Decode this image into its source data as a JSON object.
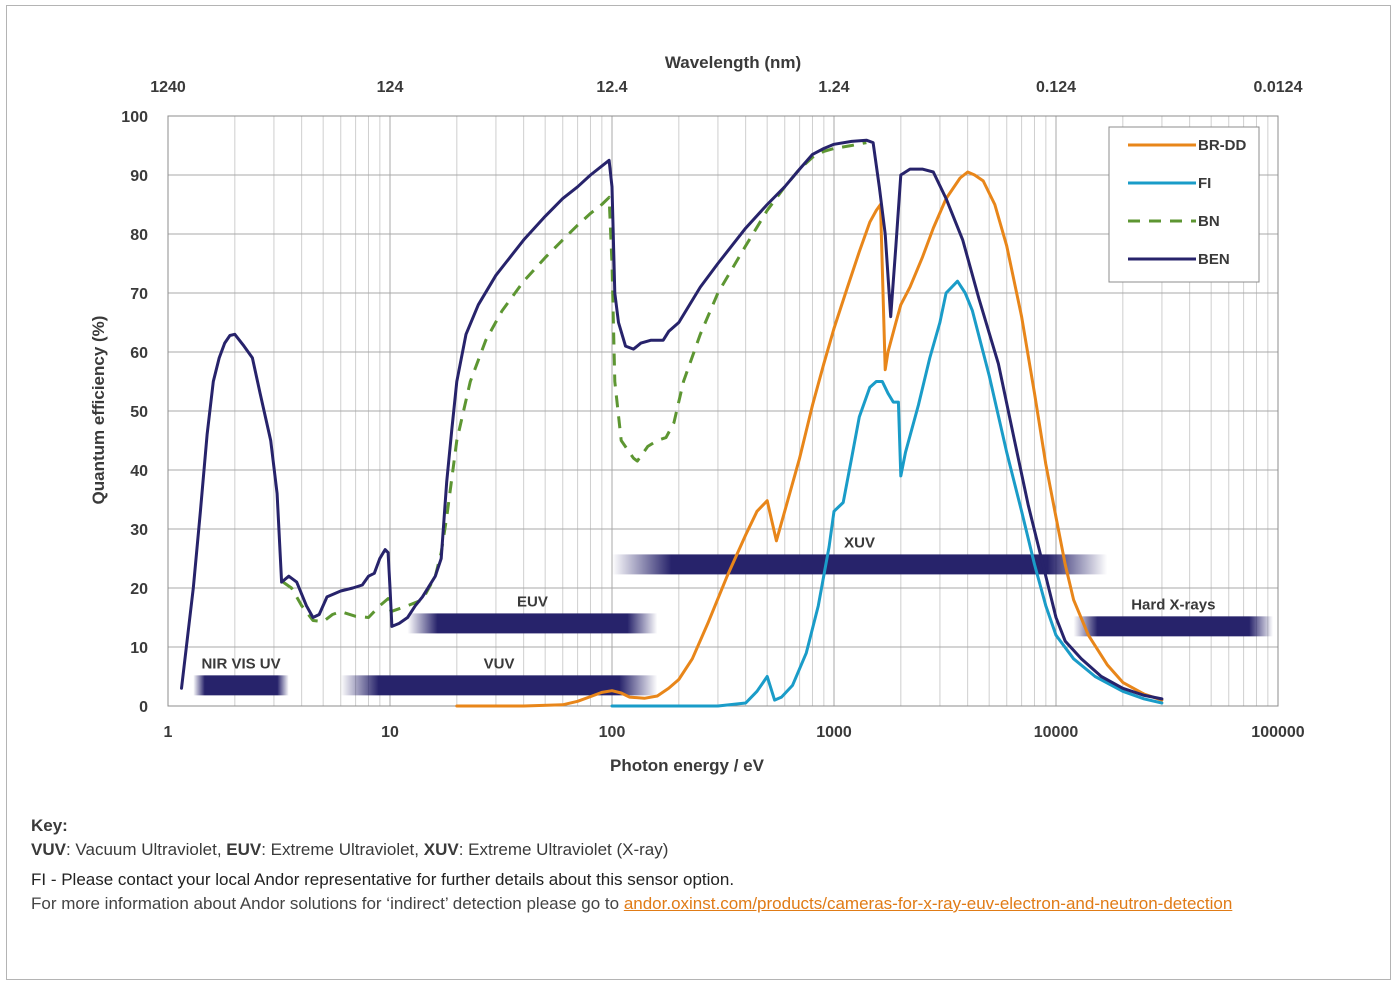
{
  "colors": {
    "br_dd": "#e8861a",
    "fi": "#1a9cc8",
    "bn": "#5d9632",
    "ben": "#27236b",
    "band": "#27236b",
    "link": "#e07b16"
  },
  "chart_data": {
    "type": "line",
    "title": "",
    "top_axis_title": "Wavelength (nm)",
    "top_tick_labels": [
      "1240",
      "124",
      "12.4",
      "1.24",
      "0.124",
      "0.0124"
    ],
    "xlabel": "Photon energy / eV",
    "ylabel": "Quantum efficiency (%)",
    "x_scale": "log",
    "xlim": [
      1,
      100000
    ],
    "ylim": [
      0,
      100
    ],
    "x_tick_labels": [
      "1",
      "10",
      "100",
      "1000",
      "10000",
      "100000"
    ],
    "y_tick_labels": [
      "0",
      "10",
      "20",
      "30",
      "40",
      "50",
      "60",
      "70",
      "80",
      "90",
      "100"
    ],
    "grid": true,
    "legend_placement": "top-right",
    "series": [
      {
        "name": "BR-DD",
        "style": "solid",
        "color_key": "br_dd",
        "points": [
          [
            20,
            0
          ],
          [
            40,
            0
          ],
          [
            60,
            0.2
          ],
          [
            70,
            0.8
          ],
          [
            80,
            1.6
          ],
          [
            90,
            2.3
          ],
          [
            100,
            2.6
          ],
          [
            110,
            2.2
          ],
          [
            120,
            1.5
          ],
          [
            140,
            1.3
          ],
          [
            160,
            1.7
          ],
          [
            180,
            3
          ],
          [
            200,
            4.5
          ],
          [
            230,
            8
          ],
          [
            270,
            14
          ],
          [
            330,
            22
          ],
          [
            400,
            29
          ],
          [
            450,
            33
          ],
          [
            500,
            34.8
          ],
          [
            550,
            28
          ],
          [
            600,
            33
          ],
          [
            700,
            42
          ],
          [
            800,
            51
          ],
          [
            900,
            58
          ],
          [
            1000,
            64
          ],
          [
            1150,
            71
          ],
          [
            1300,
            77
          ],
          [
            1450,
            82
          ],
          [
            1550,
            84
          ],
          [
            1620,
            85
          ],
          [
            1700,
            57
          ],
          [
            1750,
            60
          ],
          [
            1900,
            65
          ],
          [
            2000,
            68
          ],
          [
            2200,
            71
          ],
          [
            2500,
            76
          ],
          [
            2800,
            81
          ],
          [
            3200,
            86
          ],
          [
            3700,
            89.5
          ],
          [
            4000,
            90.5
          ],
          [
            4300,
            90
          ],
          [
            4700,
            89
          ],
          [
            5300,
            85
          ],
          [
            6000,
            78
          ],
          [
            7000,
            66
          ],
          [
            8000,
            53
          ],
          [
            9000,
            41
          ],
          [
            10000,
            32
          ],
          [
            11000,
            24
          ],
          [
            12000,
            18
          ],
          [
            14000,
            12
          ],
          [
            17000,
            7
          ],
          [
            20000,
            4
          ],
          [
            25000,
            2
          ],
          [
            30000,
            1
          ]
        ]
      },
      {
        "name": "FI",
        "style": "solid",
        "color_key": "fi",
        "points": [
          [
            100,
            0
          ],
          [
            200,
            0
          ],
          [
            300,
            0
          ],
          [
            400,
            0.5
          ],
          [
            450,
            2.5
          ],
          [
            500,
            5
          ],
          [
            540,
            1
          ],
          [
            580,
            1.5
          ],
          [
            650,
            3.5
          ],
          [
            750,
            9
          ],
          [
            850,
            17
          ],
          [
            950,
            27
          ],
          [
            1000,
            33
          ],
          [
            1100,
            34.5
          ],
          [
            1200,
            42
          ],
          [
            1300,
            49
          ],
          [
            1450,
            54
          ],
          [
            1550,
            55
          ],
          [
            1650,
            55
          ],
          [
            1750,
            53
          ],
          [
            1850,
            51.5
          ],
          [
            1950,
            51.5
          ],
          [
            2000,
            39
          ],
          [
            2100,
            43
          ],
          [
            2400,
            51
          ],
          [
            2700,
            59
          ],
          [
            3000,
            65
          ],
          [
            3200,
            70
          ],
          [
            3600,
            72
          ],
          [
            3900,
            70
          ],
          [
            4200,
            67
          ],
          [
            5000,
            56
          ],
          [
            6000,
            43
          ],
          [
            7000,
            33
          ],
          [
            8000,
            24
          ],
          [
            9000,
            17
          ],
          [
            10000,
            12
          ],
          [
            12000,
            8
          ],
          [
            15000,
            5
          ],
          [
            20000,
            2.5
          ],
          [
            25000,
            1.2
          ],
          [
            30000,
            0.5
          ]
        ]
      },
      {
        "name": "BN",
        "style": "dashed",
        "color_key": "bn",
        "points": [
          [
            3.3,
            21
          ],
          [
            3.6,
            20
          ],
          [
            4,
            17
          ],
          [
            4.5,
            14.5
          ],
          [
            5,
            14.3
          ],
          [
            5.5,
            15.5
          ],
          [
            6,
            16
          ],
          [
            7,
            15.2
          ],
          [
            8,
            15
          ],
          [
            9,
            17
          ],
          [
            9.8,
            18.2
          ],
          [
            10.1,
            16
          ],
          [
            12,
            17
          ],
          [
            14,
            18
          ],
          [
            16,
            22
          ],
          [
            17,
            26
          ],
          [
            18,
            32
          ],
          [
            20,
            45
          ],
          [
            23,
            55
          ],
          [
            27,
            62
          ],
          [
            32,
            67
          ],
          [
            40,
            72
          ],
          [
            50,
            76
          ],
          [
            60,
            79
          ],
          [
            70,
            81.5
          ],
          [
            80,
            83.5
          ],
          [
            90,
            85
          ],
          [
            97,
            86.2
          ],
          [
            100,
            75
          ],
          [
            103,
            55
          ],
          [
            110,
            45
          ],
          [
            125,
            42
          ],
          [
            130,
            41.5
          ],
          [
            145,
            44
          ],
          [
            160,
            45
          ],
          [
            175,
            45.5
          ],
          [
            190,
            48
          ],
          [
            210,
            55
          ],
          [
            250,
            63
          ],
          [
            300,
            70
          ],
          [
            400,
            78
          ],
          [
            500,
            84
          ],
          [
            600,
            88
          ],
          [
            700,
            91
          ],
          [
            800,
            93
          ],
          [
            900,
            94
          ],
          [
            1000,
            94.5
          ],
          [
            1200,
            95
          ],
          [
            1400,
            95.5
          ]
        ]
      },
      {
        "name": "BEN",
        "style": "solid",
        "color_key": "ben",
        "points": [
          [
            1.15,
            3
          ],
          [
            1.3,
            20
          ],
          [
            1.4,
            33
          ],
          [
            1.5,
            46
          ],
          [
            1.6,
            55
          ],
          [
            1.7,
            59
          ],
          [
            1.8,
            61.5
          ],
          [
            1.9,
            62.8
          ],
          [
            2,
            63
          ],
          [
            2.2,
            61
          ],
          [
            2.4,
            59
          ],
          [
            2.6,
            53
          ],
          [
            2.9,
            45
          ],
          [
            3.1,
            36
          ],
          [
            3.25,
            21
          ],
          [
            3.5,
            22
          ],
          [
            3.8,
            21
          ],
          [
            4.2,
            17
          ],
          [
            4.5,
            15
          ],
          [
            4.8,
            15.5
          ],
          [
            5.2,
            18.5
          ],
          [
            6,
            19.5
          ],
          [
            6.8,
            20
          ],
          [
            7.5,
            20.5
          ],
          [
            8,
            22
          ],
          [
            8.5,
            22.5
          ],
          [
            9,
            25
          ],
          [
            9.5,
            26.5
          ],
          [
            9.8,
            26
          ],
          [
            10,
            20
          ],
          [
            10.2,
            13.5
          ],
          [
            11,
            14
          ],
          [
            12,
            15
          ],
          [
            13,
            17
          ],
          [
            14,
            18.5
          ],
          [
            16,
            22
          ],
          [
            17,
            25
          ],
          [
            18,
            38
          ],
          [
            19,
            47
          ],
          [
            20,
            55
          ],
          [
            22,
            63
          ],
          [
            25,
            68
          ],
          [
            30,
            73
          ],
          [
            40,
            79
          ],
          [
            50,
            83
          ],
          [
            60,
            86
          ],
          [
            70,
            88
          ],
          [
            80,
            90
          ],
          [
            90,
            91.5
          ],
          [
            97,
            92.5
          ],
          [
            100,
            88
          ],
          [
            103,
            70
          ],
          [
            107,
            65
          ],
          [
            115,
            61
          ],
          [
            125,
            60.5
          ],
          [
            135,
            61.5
          ],
          [
            150,
            62
          ],
          [
            170,
            62
          ],
          [
            180,
            63.5
          ],
          [
            200,
            65
          ],
          [
            250,
            71
          ],
          [
            300,
            75
          ],
          [
            400,
            81
          ],
          [
            500,
            85
          ],
          [
            600,
            88
          ],
          [
            700,
            91
          ],
          [
            800,
            93.5
          ],
          [
            900,
            94.5
          ],
          [
            1000,
            95.2
          ],
          [
            1200,
            95.7
          ],
          [
            1400,
            95.9
          ],
          [
            1500,
            95.5
          ],
          [
            1600,
            88
          ],
          [
            1700,
            80
          ],
          [
            1800,
            66
          ],
          [
            1900,
            78
          ],
          [
            2000,
            90
          ],
          [
            2200,
            91
          ],
          [
            2500,
            91
          ],
          [
            2800,
            90.5
          ],
          [
            3200,
            86
          ],
          [
            3800,
            79
          ],
          [
            4500,
            69
          ],
          [
            5500,
            58
          ],
          [
            6500,
            45
          ],
          [
            7500,
            34
          ],
          [
            9000,
            22
          ],
          [
            10000,
            15
          ],
          [
            11000,
            11
          ],
          [
            13000,
            8
          ],
          [
            16000,
            5
          ],
          [
            20000,
            3
          ],
          [
            25000,
            1.8
          ],
          [
            30000,
            1.2
          ]
        ]
      }
    ],
    "bands": [
      {
        "label": "NIR  VIS UV",
        "x_from": 1.3,
        "x_to": 3.5,
        "y": 3.5
      },
      {
        "label": "VUV",
        "x_from": 6,
        "x_to": 160,
        "y": 3.5
      },
      {
        "label": "EUV",
        "x_from": 12,
        "x_to": 160,
        "y": 14
      },
      {
        "label": "XUV",
        "x_from": 100,
        "x_to": 17000,
        "y": 24
      },
      {
        "label": "Hard X-rays",
        "x_from": 12000,
        "x_to": 95000,
        "y": 13.5
      }
    ]
  },
  "key": {
    "title": "Key:",
    "defs": [
      {
        "abbr": "VUV",
        "desc": ": Vacuum Ultraviolet, "
      },
      {
        "abbr": "EUV",
        "desc": ": Extreme Ultraviolet, "
      },
      {
        "abbr": "XUV",
        "desc": ": Extreme Ultraviolet (X-ray)"
      }
    ],
    "fi_note": "FI - Please contact your local Andor representative for further details about this sensor option.",
    "more_text": "For more information about Andor solutions for ‘indirect’ detection please go to ",
    "link_text": "andor.oxinst.com/products/cameras-for-x-ray-euv-electron-and-neutron-detection"
  }
}
